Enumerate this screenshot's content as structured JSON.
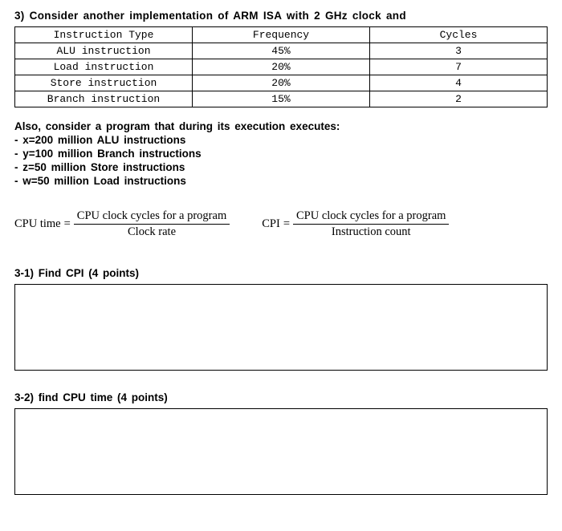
{
  "question": {
    "number": "3)",
    "heading": "Consider another implementation of ARM ISA with 2 GHz clock and"
  },
  "table": {
    "columns": [
      "Instruction Type",
      "Frequency",
      "Cycles"
    ],
    "rows": [
      [
        "ALU instruction",
        "45%",
        "3"
      ],
      [
        "Load instruction",
        "20%",
        "7"
      ],
      [
        "Store instruction",
        "20%",
        "4"
      ],
      [
        "Branch instruction",
        "15%",
        "2"
      ]
    ]
  },
  "program": {
    "intro": "Also, consider a program that during its execution executes:",
    "lines": [
      "- x=200 million ALU instructions",
      "- y=100 million Branch instructions",
      "- z=50 million Store instructions",
      "- w=50 million Load instructions"
    ]
  },
  "formulas": {
    "cpu_time": {
      "lhs": "CPU time",
      "eq": "=",
      "num": "CPU clock cycles for a program",
      "den": "Clock rate"
    },
    "cpi": {
      "lhs": "CPI",
      "eq": "=",
      "num": "CPU clock cycles for a program",
      "den": "Instruction count"
    }
  },
  "subquestions": {
    "q1": "3-1) Find CPI (4 points)",
    "q2": "3-2) find CPU time (4 points)"
  }
}
